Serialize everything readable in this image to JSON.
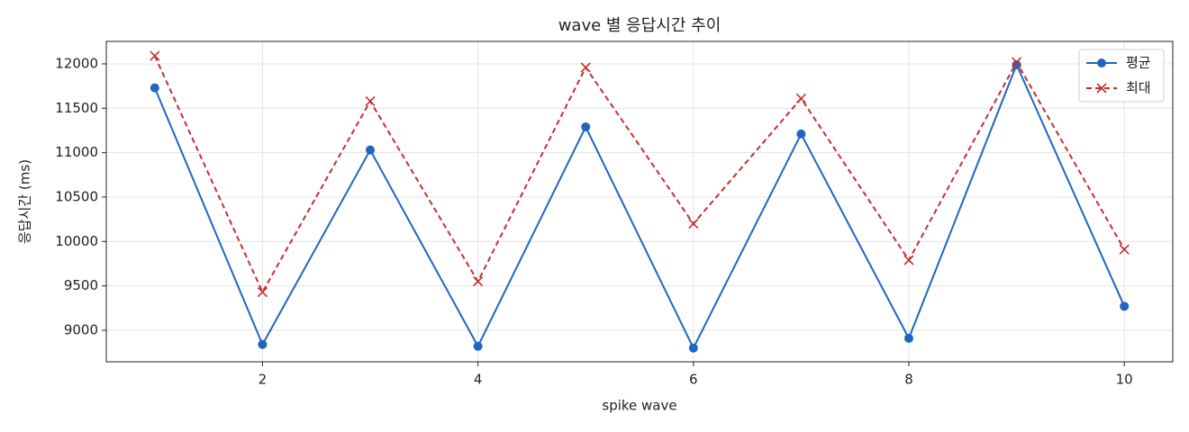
{
  "chart_data": {
    "type": "line",
    "title": "wave 별 응답시간 추이",
    "xlabel": "spike wave",
    "ylabel": "응답시간 (ms)",
    "x": [
      1,
      2,
      3,
      4,
      5,
      6,
      7,
      8,
      9,
      10
    ],
    "series": [
      {
        "name": "평균",
        "color": "#1f66c0",
        "marker": "o",
        "linestyle": "solid",
        "values": [
          11730,
          8840,
          11030,
          8820,
          11290,
          8800,
          11210,
          8910,
          11990,
          9270
        ]
      },
      {
        "name": "최대",
        "color": "#c62e2e",
        "marker": "x",
        "linestyle": "dashed",
        "values": [
          12090,
          9430,
          11580,
          9550,
          11960,
          10200,
          11610,
          9790,
          12020,
          9910
        ]
      }
    ],
    "xlim": [
      0.55,
      10.45
    ],
    "xticks": [
      2,
      4,
      6,
      8,
      10
    ],
    "ylim": [
      8645,
      12253
    ],
    "yticks": [
      9000,
      9500,
      10000,
      10500,
      11000,
      11500,
      12000
    ],
    "grid": true,
    "legend": "upper right"
  }
}
